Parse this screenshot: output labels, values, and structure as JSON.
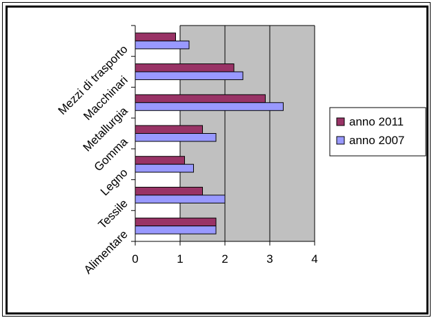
{
  "chart_data": {
    "type": "bar",
    "orientation": "horizontal",
    "categories": [
      "Alimentare",
      "Tessile",
      "Legno",
      "Gomma",
      "Metallurgia",
      "Macchinari",
      "Mezzi di trasporto"
    ],
    "series": [
      {
        "name": "anno 2011",
        "color": "#993366",
        "values": [
          1.8,
          1.5,
          1.1,
          1.5,
          2.9,
          2.2,
          0.9
        ]
      },
      {
        "name": "anno 2007",
        "color": "#9999FF",
        "values": [
          1.8,
          2.0,
          1.3,
          1.8,
          3.3,
          2.4,
          1.2
        ]
      }
    ],
    "x_ticks": [
      "0",
      "1",
      "2",
      "3",
      "4"
    ],
    "xlim": [
      0,
      4
    ],
    "grid": "vertical lines",
    "plot_background": "#C0C0C0",
    "legend_position": "right",
    "title": "",
    "xlabel": "",
    "ylabel": ""
  }
}
